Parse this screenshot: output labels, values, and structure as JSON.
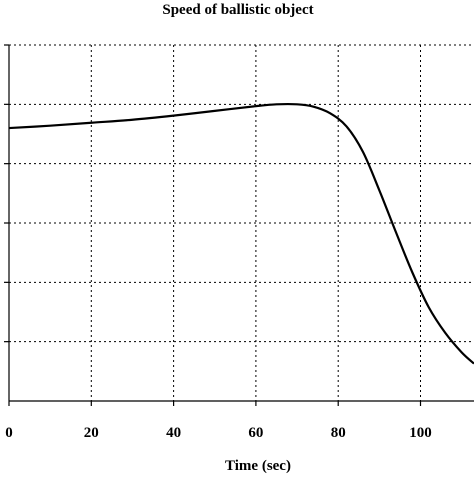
{
  "chart_data": {
    "type": "line",
    "title": "Speed of ballistic object",
    "xlabel": "Time (sec)",
    "ylabel": "",
    "xlim": [
      0,
      113
    ],
    "ylim": [
      0,
      6
    ],
    "x_ticks": [
      0,
      20,
      40,
      60,
      80,
      100
    ],
    "x_tick_labels": [
      "0",
      "20",
      "40",
      "60",
      "80",
      "100"
    ],
    "y_ticks": [
      1,
      2,
      3,
      4,
      5,
      6
    ],
    "grid": true,
    "series": [
      {
        "values_x": [
          0,
          10,
          20,
          30,
          40,
          50,
          60,
          65,
          70,
          74,
          78,
          82,
          86,
          90,
          94,
          98,
          102,
          106,
          110,
          113
        ],
        "values_y": [
          4.6,
          4.64,
          4.69,
          4.74,
          4.81,
          4.89,
          4.97,
          5.0,
          5.0,
          4.96,
          4.85,
          4.63,
          4.2,
          3.55,
          2.85,
          2.17,
          1.58,
          1.15,
          0.82,
          0.63
        ]
      }
    ]
  }
}
